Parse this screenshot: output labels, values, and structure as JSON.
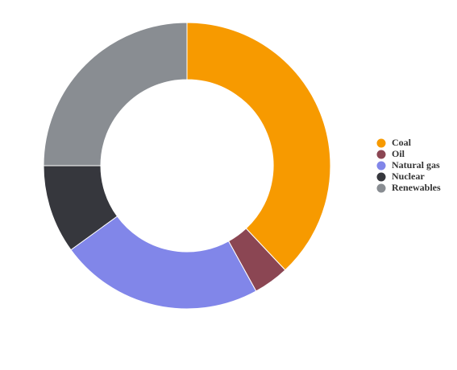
{
  "chart_data": {
    "type": "donut",
    "categories": [
      "Coal",
      "Oil",
      "Natural gas",
      "Nuclear",
      "Renewables"
    ],
    "values": [
      38,
      4,
      23,
      10,
      25
    ],
    "colors": [
      "#f79a00",
      "#8b4653",
      "#8186e9",
      "#36373d",
      "#898d92"
    ],
    "legend": "right"
  }
}
